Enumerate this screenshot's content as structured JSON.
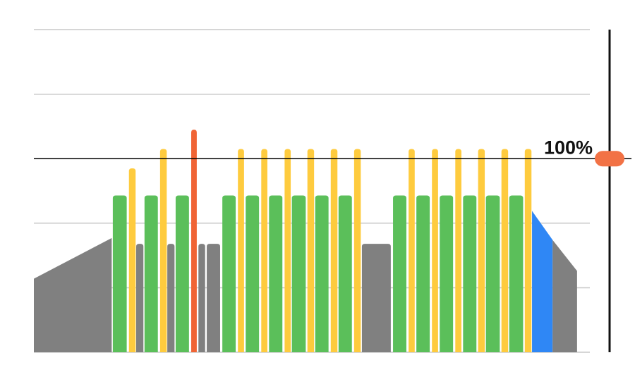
{
  "chart_data": {
    "type": "workout",
    "xlim": [
      0,
      100
    ],
    "ylim": [
      0,
      166.7
    ],
    "yticks": [
      0,
      33.3,
      66.7,
      100,
      133.3,
      166.7
    ],
    "grid": true,
    "reference": {
      "value": 100,
      "label": "100%"
    },
    "slider": {
      "value": 100,
      "color": "#f27245"
    },
    "segments": [
      {
        "start": 0,
        "end": 14,
        "from": 38,
        "to": 59,
        "color": "#808080"
      },
      {
        "start": 14.2,
        "end": 16.7,
        "from": 81,
        "to": 81,
        "color": "#5bbf5a"
      },
      {
        "start": 17.1,
        "end": 18.3,
        "from": 95,
        "to": 95,
        "color": "#fecb3e"
      },
      {
        "start": 18.4,
        "end": 19.7,
        "from": 56,
        "to": 56,
        "color": "#808080"
      },
      {
        "start": 19.9,
        "end": 22.3,
        "from": 81,
        "to": 81,
        "color": "#5bbf5a"
      },
      {
        "start": 22.7,
        "end": 23.9,
        "from": 105,
        "to": 105,
        "color": "#fecb3e"
      },
      {
        "start": 24.0,
        "end": 25.3,
        "from": 56,
        "to": 56,
        "color": "#808080"
      },
      {
        "start": 25.5,
        "end": 27.9,
        "from": 81,
        "to": 81,
        "color": "#5bbf5a"
      },
      {
        "start": 28.3,
        "end": 29.3,
        "from": 115,
        "to": 115,
        "color": "#f06435"
      },
      {
        "start": 29.6,
        "end": 30.8,
        "from": 56,
        "to": 56,
        "color": "#808080"
      },
      {
        "start": 31.1,
        "end": 33.5,
        "from": 56,
        "to": 56,
        "color": "#808080"
      },
      {
        "start": 33.9,
        "end": 36.3,
        "from": 81,
        "to": 81,
        "color": "#5bbf5a"
      },
      {
        "start": 36.7,
        "end": 37.8,
        "from": 105,
        "to": 105,
        "color": "#fecb3e"
      },
      {
        "start": 38.1,
        "end": 40.5,
        "from": 81,
        "to": 81,
        "color": "#5bbf5a"
      },
      {
        "start": 40.9,
        "end": 42.0,
        "from": 105,
        "to": 105,
        "color": "#fecb3e"
      },
      {
        "start": 42.3,
        "end": 44.7,
        "from": 81,
        "to": 81,
        "color": "#5bbf5a"
      },
      {
        "start": 45.1,
        "end": 46.2,
        "from": 105,
        "to": 105,
        "color": "#fecb3e"
      },
      {
        "start": 46.4,
        "end": 48.9,
        "from": 81,
        "to": 81,
        "color": "#5bbf5a"
      },
      {
        "start": 49.2,
        "end": 50.4,
        "from": 105,
        "to": 105,
        "color": "#fecb3e"
      },
      {
        "start": 50.6,
        "end": 53.0,
        "from": 81,
        "to": 81,
        "color": "#5bbf5a"
      },
      {
        "start": 53.4,
        "end": 54.6,
        "from": 105,
        "to": 105,
        "color": "#fecb3e"
      },
      {
        "start": 54.8,
        "end": 57.2,
        "from": 81,
        "to": 81,
        "color": "#5bbf5a"
      },
      {
        "start": 57.6,
        "end": 58.8,
        "from": 105,
        "to": 105,
        "color": "#fecb3e"
      },
      {
        "start": 59.0,
        "end": 64.2,
        "from": 56,
        "to": 56,
        "color": "#808080"
      },
      {
        "start": 64.6,
        "end": 67.0,
        "from": 81,
        "to": 81,
        "color": "#5bbf5a"
      },
      {
        "start": 67.4,
        "end": 68.5,
        "from": 105,
        "to": 105,
        "color": "#fecb3e"
      },
      {
        "start": 68.8,
        "end": 71.2,
        "from": 81,
        "to": 81,
        "color": "#5bbf5a"
      },
      {
        "start": 71.6,
        "end": 72.7,
        "from": 105,
        "to": 105,
        "color": "#fecb3e"
      },
      {
        "start": 73.0,
        "end": 75.4,
        "from": 81,
        "to": 81,
        "color": "#5bbf5a"
      },
      {
        "start": 75.8,
        "end": 76.9,
        "from": 105,
        "to": 105,
        "color": "#fecb3e"
      },
      {
        "start": 77.2,
        "end": 79.6,
        "from": 81,
        "to": 81,
        "color": "#5bbf5a"
      },
      {
        "start": 79.9,
        "end": 81.1,
        "from": 105,
        "to": 105,
        "color": "#fecb3e"
      },
      {
        "start": 81.3,
        "end": 83.8,
        "from": 81,
        "to": 81,
        "color": "#5bbf5a"
      },
      {
        "start": 84.1,
        "end": 85.3,
        "from": 105,
        "to": 105,
        "color": "#fecb3e"
      },
      {
        "start": 85.5,
        "end": 88.0,
        "from": 81,
        "to": 81,
        "color": "#5bbf5a"
      },
      {
        "start": 88.3,
        "end": 89.5,
        "from": 105,
        "to": 105,
        "color": "#fecb3e"
      },
      {
        "start": 89.6,
        "end": 93.3,
        "from": 73,
        "to": 58,
        "color": "#2f87f5"
      },
      {
        "start": 93.3,
        "end": 97.7,
        "from": 58,
        "to": 42,
        "color": "#808080"
      }
    ]
  }
}
